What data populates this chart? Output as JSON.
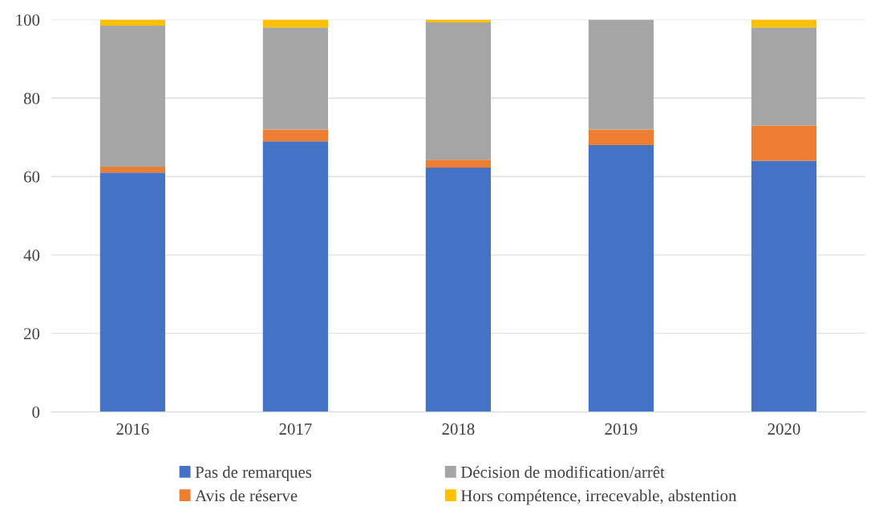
{
  "chart_data": {
    "type": "bar",
    "stacked": true,
    "categories": [
      "2016",
      "2017",
      "2018",
      "2019",
      "2020"
    ],
    "series": [
      {
        "name": "Pas de remarques",
        "color": "#4472c4",
        "values": [
          61,
          69,
          62.3,
          68,
          64
        ]
      },
      {
        "name": "Avis de réserve",
        "color": "#ed7d31",
        "values": [
          1.5,
          3,
          2,
          4,
          9
        ]
      },
      {
        "name": "Décision de modification/arrêt",
        "color": "#a5a5a5",
        "values": [
          36,
          26,
          35,
          28,
          25
        ]
      },
      {
        "name": "Hors compétence, irrecevable, abstention",
        "color": "#ffc000",
        "values": [
          1.5,
          2,
          0.7,
          0,
          2
        ]
      }
    ],
    "ylim": [
      0,
      100
    ],
    "yticks": [
      0,
      20,
      40,
      60,
      80,
      100
    ],
    "grid": "y",
    "legend": "bottom"
  }
}
